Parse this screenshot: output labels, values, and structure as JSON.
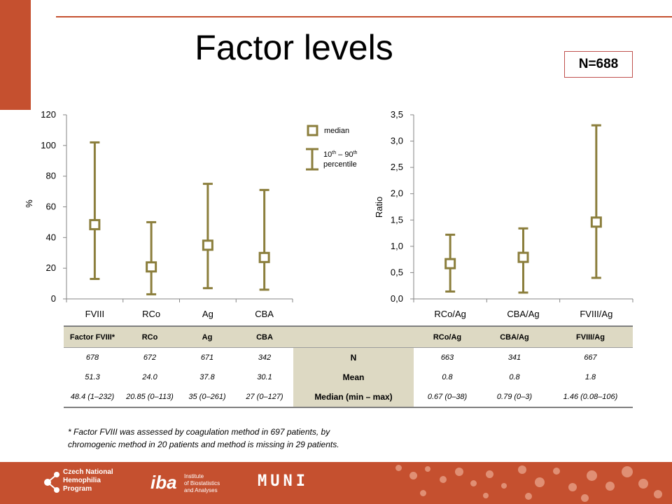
{
  "slide": {
    "title": "Factor levels",
    "n_label": "N=688",
    "footnote_line1": "* Factor FVIII was assessed by coagulation method in 697 patients, by",
    "footnote_line2": "chromogenic method in 20 patients and method is missing in 29 patients."
  },
  "legend": {
    "median": "median",
    "percentile_prefix": "10",
    "percentile_sup1": "th",
    "percentile_mid": " – 90",
    "percentile_sup2": "th",
    "percentile_line2": "percentile"
  },
  "chart_data": [
    {
      "type": "scatter",
      "subtype": "median with 10th-90th percentile error bars",
      "ylabel": "%",
      "ylim": [
        0,
        120
      ],
      "yticks": [
        "0",
        "20",
        "40",
        "60",
        "80",
        "100",
        "120"
      ],
      "categories": [
        "FVIII",
        "RCo",
        "Ag",
        "CBA"
      ],
      "median": [
        48.4,
        20.85,
        35,
        27
      ],
      "p10": [
        13,
        3,
        7,
        6
      ],
      "p90": [
        102,
        50,
        75,
        71
      ],
      "color": "#8b7e3c"
    },
    {
      "type": "scatter",
      "subtype": "median with 10th-90th percentile error bars",
      "ylabel": "Ratio",
      "ylim": [
        0,
        3.5
      ],
      "yticks": [
        "0,0",
        "0,5",
        "1,0",
        "1,5",
        "2,0",
        "2,5",
        "3,0",
        "3,5"
      ],
      "categories": [
        "RCo/Ag",
        "CBA/Ag",
        "FVIII/Ag"
      ],
      "median": [
        0.67,
        0.79,
        1.46
      ],
      "p10": [
        0.14,
        0.12,
        0.4
      ],
      "p90": [
        1.22,
        1.34,
        3.3
      ],
      "color": "#8b7e3c"
    }
  ],
  "table": {
    "left_headers": [
      "Factor FVIII*",
      "RCo",
      "Ag",
      "CBA"
    ],
    "right_headers": [
      "RCo/Ag",
      "CBA/Ag",
      "FVIII/Ag"
    ],
    "rows": [
      {
        "label": "N",
        "left": [
          "678",
          "672",
          "671",
          "342"
        ],
        "right": [
          "663",
          "341",
          "667"
        ]
      },
      {
        "label": "Mean",
        "left": [
          "51.3",
          "24.0",
          "37.8",
          "30.1"
        ],
        "right": [
          "0.8",
          "0.8",
          "1.8"
        ]
      },
      {
        "label": "Median (min – max)",
        "left": [
          "48.4 (1–232)",
          "20.85 (0–113)",
          "35 (0–261)",
          "27 (0–127)"
        ],
        "right": [
          "0.67 (0–38)",
          "0.79 (0–3)",
          "1.46 (0.08–106)"
        ]
      }
    ]
  },
  "footer": {
    "cnhp_line1": "Czech National",
    "cnhp_line2": "Hemophilia",
    "cnhp_line3": "Program",
    "iba_mark": "iba",
    "iba_line1": "Institute",
    "iba_line2": "of Biostatistics",
    "iba_line3": "and Analyses",
    "muni": "MUNI",
    "colors": {
      "accent": "#c5502f",
      "marker": "#8b7e3c",
      "table_fill": "#ddd9c3"
    }
  }
}
